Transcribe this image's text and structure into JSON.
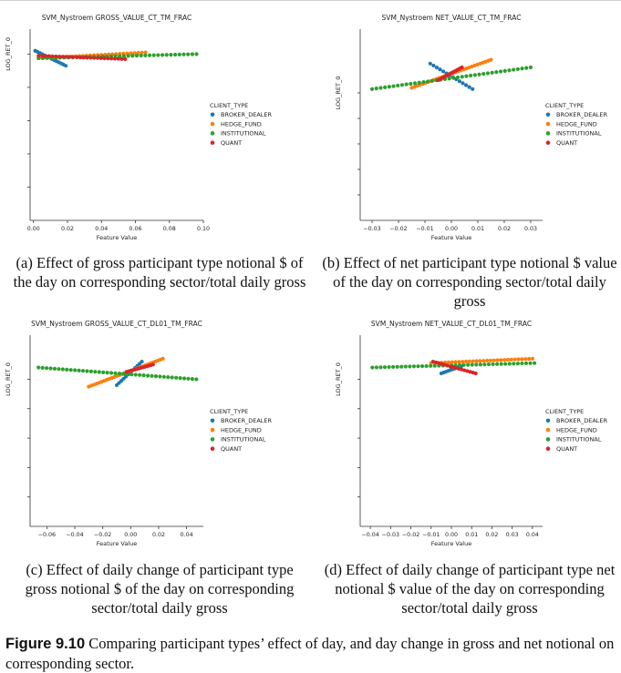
{
  "figure": {
    "label": "Figure 9.10",
    "text": "Comparing participant types’ effect of day, and day change in gross and net notional on corresponding sector."
  },
  "legend": {
    "title": "CLIENT_TYPE",
    "items": [
      {
        "name": "BROKER_DEALER",
        "color": "#1f77b4"
      },
      {
        "name": "HEDGE_FUND",
        "color": "#ff7f0e"
      },
      {
        "name": "INSTITUTIONAL",
        "color": "#2ca02c"
      },
      {
        "name": "QUANT",
        "color": "#d62728"
      }
    ]
  },
  "panels": [
    {
      "caption": "(a) Effect of gross participant type notional $ of the day on corresponding sector/total daily gross",
      "chart_data": {
        "type": "scatter",
        "title": "SVM_Nystroem GROSS_VALUE_CT_TM_FRAC",
        "xlabel": "Feature Value",
        "ylabel": "LOG_RET_0",
        "xlim": [
          -0.002,
          0.1
        ],
        "ylim": [
          -1.0,
          0.15
        ],
        "xticks": [
          {
            "v": 0.0,
            "t": "0.00"
          },
          {
            "v": 0.02,
            "t": "0.02"
          },
          {
            "v": 0.04,
            "t": "0.04"
          },
          {
            "v": 0.06,
            "t": "0.06"
          },
          {
            "v": 0.08,
            "t": "0.08"
          },
          {
            "v": 0.1,
            "t": "0.10"
          }
        ],
        "yticks": [
          0.0,
          -0.2,
          -0.4,
          -0.6,
          -0.8
        ],
        "series": [
          {
            "name": "BROKER_DEALER",
            "x0": 0.001,
            "x1": 0.019,
            "y0": 0.02,
            "y1": -0.07,
            "n": 14
          },
          {
            "name": "HEDGE_FUND",
            "x0": 0.003,
            "x1": 0.066,
            "y0": -0.025,
            "y1": 0.01,
            "n": 30
          },
          {
            "name": "INSTITUTIONAL",
            "x0": 0.003,
            "x1": 0.096,
            "y0": -0.025,
            "y1": 0.0,
            "n": 38
          },
          {
            "name": "QUANT",
            "x0": 0.003,
            "x1": 0.054,
            "y0": -0.01,
            "y1": -0.03,
            "n": 26
          }
        ]
      }
    },
    {
      "caption": "(b) Effect of net participant type notional $ value of the day on corresponding sector/total daily gross",
      "chart_data": {
        "type": "scatter",
        "title": "SVM_Nystroem NET_VALUE_CT_TM_FRAC",
        "xlabel": "Feature Value",
        "ylabel": "LOG_RET_0",
        "xlim": [
          -0.0345,
          0.0345
        ],
        "ylim": [
          -1.0,
          0.5
        ],
        "xticks": [
          {
            "v": -0.03,
            "t": "−0.03"
          },
          {
            "v": -0.02,
            "t": "−0.02"
          },
          {
            "v": -0.01,
            "t": "−0.01"
          },
          {
            "v": 0.0,
            "t": "0.00"
          },
          {
            "v": 0.01,
            "t": "0.01"
          },
          {
            "v": 0.02,
            "t": "0.02"
          },
          {
            "v": 0.03,
            "t": "0.03"
          }
        ],
        "yticks": [
          0.0,
          -0.2,
          -0.4,
          -0.6,
          -0.8
        ],
        "series": [
          {
            "name": "BROKER_DEALER",
            "x0": -0.008,
            "x1": 0.008,
            "y0": 0.23,
            "y1": 0.03,
            "n": 14
          },
          {
            "name": "HEDGE_FUND",
            "x0": -0.015,
            "x1": 0.015,
            "y0": 0.04,
            "y1": 0.26,
            "n": 30
          },
          {
            "name": "INSTITUTIONAL",
            "x0": -0.03,
            "x1": 0.03,
            "y0": 0.03,
            "y1": 0.2,
            "n": 38
          },
          {
            "name": "QUANT",
            "x0": -0.005,
            "x1": 0.004,
            "y0": 0.1,
            "y1": 0.2,
            "n": 16
          }
        ]
      }
    },
    {
      "caption": "(c) Effect of daily change of participant type gross notional $ of the day on corresponding sector/total daily gross",
      "chart_data": {
        "type": "scatter",
        "title": "SVM_Nystroem GROSS_VALUE_CT_DL01_TM_FRAC",
        "xlabel": "Feature Value",
        "ylabel": "LOG_RET_0",
        "xlim": [
          -0.072,
          0.052
        ],
        "ylim": [
          -1.0,
          0.3
        ],
        "xticks": [
          {
            "v": -0.06,
            "t": "−0.06"
          },
          {
            "v": -0.04,
            "t": "−0.04"
          },
          {
            "v": -0.02,
            "t": "−0.02"
          },
          {
            "v": 0.0,
            "t": "0.00"
          },
          {
            "v": 0.02,
            "t": "0.02"
          },
          {
            "v": 0.04,
            "t": "0.04"
          }
        ],
        "yticks": [
          0.0,
          -0.2,
          -0.4,
          -0.6,
          -0.8
        ],
        "series": [
          {
            "name": "BROKER_DEALER",
            "x0": -0.01,
            "x1": 0.008,
            "y0": -0.04,
            "y1": 0.12,
            "n": 12
          },
          {
            "name": "HEDGE_FUND",
            "x0": -0.03,
            "x1": 0.023,
            "y0": -0.05,
            "y1": 0.14,
            "n": 30
          },
          {
            "name": "INSTITUTIONAL",
            "x0": -0.066,
            "x1": 0.047,
            "y0": 0.08,
            "y1": 0.0,
            "n": 40
          },
          {
            "name": "QUANT",
            "x0": -0.003,
            "x1": 0.016,
            "y0": 0.05,
            "y1": 0.1,
            "n": 14
          }
        ]
      }
    },
    {
      "caption": "(d) Effect of daily change of participant type net notional $ value of the day on corresponding sector/total daily gross",
      "chart_data": {
        "type": "scatter",
        "title": "SVM_Nystroem NET_VALUE_CT_DL01_TM_FRAC",
        "xlabel": "Feature Value",
        "ylabel": "LOG_RET_0",
        "xlim": [
          -0.045,
          0.045
        ],
        "ylim": [
          -1.0,
          0.3
        ],
        "xticks": [
          {
            "v": -0.04,
            "t": "−0.04"
          },
          {
            "v": -0.03,
            "t": "−0.03"
          },
          {
            "v": -0.02,
            "t": "−0.02"
          },
          {
            "v": -0.01,
            "t": "−0.01"
          },
          {
            "v": 0.0,
            "t": "0.00"
          },
          {
            "v": 0.01,
            "t": "0.01"
          },
          {
            "v": 0.02,
            "t": "0.02"
          },
          {
            "v": 0.03,
            "t": "0.03"
          },
          {
            "v": 0.04,
            "t": "0.04"
          }
        ],
        "yticks": [
          0.0,
          -0.2,
          -0.4,
          -0.6,
          -0.8
        ],
        "series": [
          {
            "name": "BROKER_DEALER",
            "x0": -0.005,
            "x1": 0.005,
            "y0": 0.04,
            "y1": 0.09,
            "n": 10
          },
          {
            "name": "HEDGE_FUND",
            "x0": -0.01,
            "x1": 0.04,
            "y0": 0.11,
            "y1": 0.14,
            "n": 30
          },
          {
            "name": "INSTITUTIONAL",
            "x0": -0.039,
            "x1": 0.041,
            "y0": 0.08,
            "y1": 0.11,
            "n": 40
          },
          {
            "name": "QUANT",
            "x0": -0.009,
            "x1": 0.012,
            "y0": 0.12,
            "y1": 0.04,
            "n": 16
          }
        ]
      }
    }
  ]
}
